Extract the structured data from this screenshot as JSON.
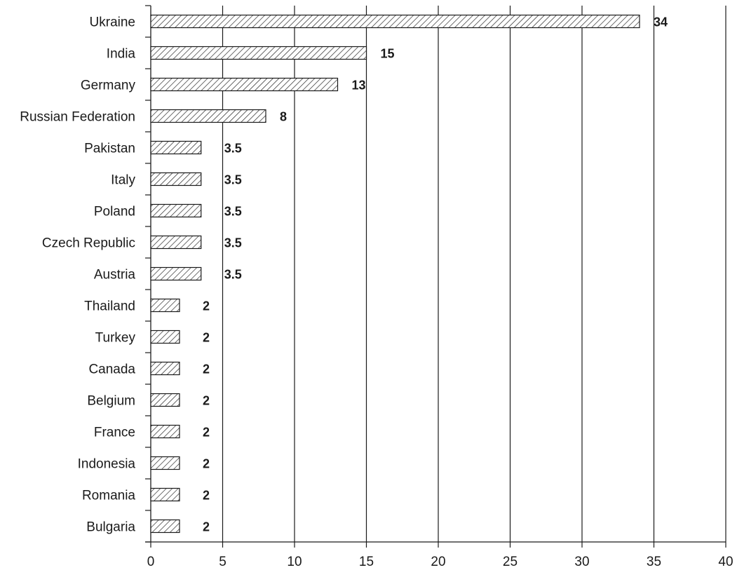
{
  "chart_data": {
    "type": "bar",
    "orientation": "horizontal",
    "categories": [
      "Ukraine",
      "India",
      "Germany",
      "Russian Federation",
      "Pakistan",
      "Italy",
      "Poland",
      "Czech Republic",
      "Austria",
      "Thailand",
      "Turkey",
      "Canada",
      "Belgium",
      "France",
      "Indonesia",
      "Romania",
      "Bulgaria"
    ],
    "values": [
      34,
      15,
      13,
      8,
      3.5,
      3.5,
      3.5,
      3.5,
      3.5,
      2,
      2,
      2,
      2,
      2,
      2,
      2,
      2
    ],
    "value_labels": [
      "34",
      "15",
      "13",
      "8",
      "3.5",
      "3.5",
      "3.5",
      "3.5",
      "3.5",
      "2",
      "2",
      "2",
      "2",
      "2",
      "2",
      "2",
      "2"
    ],
    "title": "",
    "xlabel": "",
    "ylabel": "",
    "xlim": [
      0,
      40
    ],
    "x_ticks": [
      0,
      5,
      10,
      15,
      20,
      25,
      30,
      35,
      40
    ],
    "x_tick_labels": [
      "0",
      "5",
      "10",
      "15",
      "20",
      "25",
      "30",
      "35",
      "40"
    ],
    "grid": "vertical",
    "legend": "none",
    "bar_fill": "diagonal-hatch",
    "colors": {
      "bar_stroke": "#1a1a1a",
      "hatch": "#1a1a1a",
      "grid": "#1a1a1a",
      "text": "#1a1a1a"
    }
  }
}
